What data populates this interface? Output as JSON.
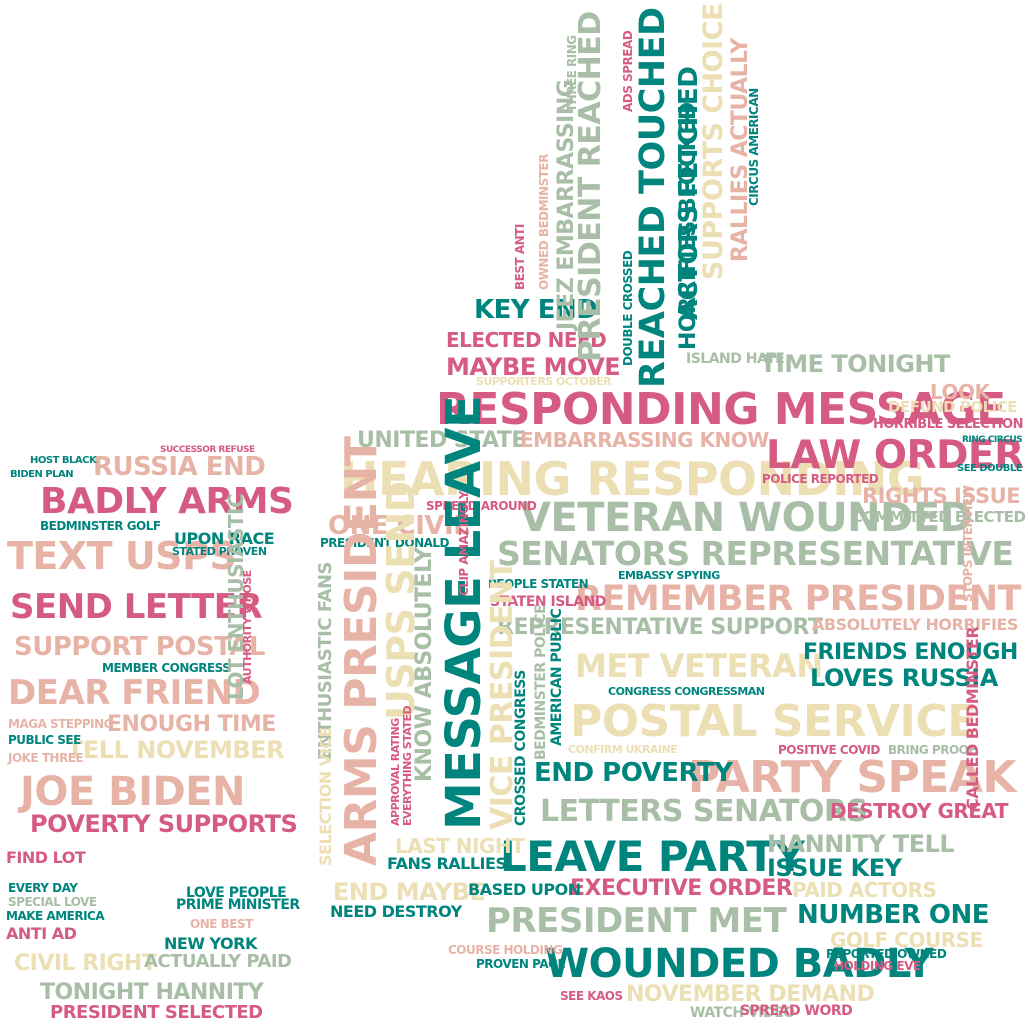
{
  "palette": {
    "pink": "#d65b82",
    "teal": "#00857e",
    "sage": "#a8bea6",
    "cream": "#ecdfb4",
    "salmon": "#e8b3a7"
  },
  "words": [
    {
      "text": "RESPONDING MESSAGE",
      "color": "pink"
    },
    {
      "text": "HEARING RESPONDING",
      "color": "cream"
    },
    {
      "text": "VETERAN WOUNDED",
      "color": "sage"
    },
    {
      "text": "SENATORS REPRESENTATIVE",
      "color": "sage"
    },
    {
      "text": "REMEMBER PRESIDENT",
      "color": "salmon"
    },
    {
      "text": "REPRESENTATIVE SUPPORT",
      "color": "sage"
    },
    {
      "text": "ABSOLUTELY HORRIFIES",
      "color": "salmon"
    },
    {
      "text": "MET VETERAN",
      "color": "cream"
    },
    {
      "text": "FRIENDS ENOUGH",
      "color": "teal"
    },
    {
      "text": "LOVES RUSSIA",
      "color": "teal"
    },
    {
      "text": "POSTAL SERVICE",
      "color": "cream"
    },
    {
      "text": "PARTY SPEAK",
      "color": "salmon"
    },
    {
      "text": "END POVERTY",
      "color": "teal"
    },
    {
      "text": "LETTERS SENATORS",
      "color": "sage"
    },
    {
      "text": "LEAVE PARTY",
      "color": "teal"
    },
    {
      "text": "EXECUTIVE ORDER",
      "color": "pink"
    },
    {
      "text": "PRESIDENT MET",
      "color": "sage"
    },
    {
      "text": "WOUNDED BADLY",
      "color": "teal"
    },
    {
      "text": "NUMBER ONE",
      "color": "teal"
    },
    {
      "text": "HANNITY TELL",
      "color": "sage"
    },
    {
      "text": "ISSUE KEY",
      "color": "teal"
    },
    {
      "text": "LAW ORDER",
      "color": "pink"
    },
    {
      "text": "RIGHTS ISSUE",
      "color": "salmon"
    },
    {
      "text": "COMMITTED ELECTED",
      "color": "sage"
    },
    {
      "text": "TIME TONIGHT",
      "color": "sage"
    },
    {
      "text": "UNITED STATE",
      "color": "sage"
    },
    {
      "text": "EMBARRASSING KNOW",
      "color": "salmon"
    },
    {
      "text": "MAYBE MOVE",
      "color": "pink"
    },
    {
      "text": "ELECTED NEED",
      "color": "pink"
    },
    {
      "text": "KEY END",
      "color": "teal"
    },
    {
      "text": "ONE CIVIL",
      "color": "salmon"
    },
    {
      "text": "END MAYBE",
      "color": "cream"
    },
    {
      "text": "NEED DESTROY",
      "color": "teal"
    },
    {
      "text": "FANS RALLIES",
      "color": "teal"
    },
    {
      "text": "LAST NIGHT",
      "color": "cream"
    },
    {
      "text": "BASED UPON",
      "color": "teal"
    },
    {
      "text": "NOVEMBER DEMAND",
      "color": "cream"
    },
    {
      "text": "DESTROY GREAT",
      "color": "pink"
    },
    {
      "text": "PAID ACTORS",
      "color": "cream"
    },
    {
      "text": "GOLF COURSE",
      "color": "cream"
    },
    {
      "text": "LOOK",
      "color": "salmon"
    },
    {
      "text": "HORRIBLE SELECTION",
      "color": "pink"
    },
    {
      "text": "DEFUND POLICE",
      "color": "cream"
    },
    {
      "text": "POLICE REPORTED",
      "color": "pink"
    },
    {
      "text": "PRESIDENT DONALD",
      "color": "teal"
    },
    {
      "text": "SPREAD AROUND",
      "color": "pink"
    },
    {
      "text": "STATEN ISLAND",
      "color": "pink"
    },
    {
      "text": "ISLAND HATE",
      "color": "sage"
    },
    {
      "text": "RUSSIA END",
      "color": "salmon"
    },
    {
      "text": "BADLY ARMS",
      "color": "pink"
    },
    {
      "text": "TEXT USPS",
      "color": "salmon"
    },
    {
      "text": "SEND LETTER",
      "color": "pink"
    },
    {
      "text": "SUPPORT POSTAL",
      "color": "salmon"
    },
    {
      "text": "DEAR FRIEND",
      "color": "salmon"
    },
    {
      "text": "ENOUGH TIME",
      "color": "salmon"
    },
    {
      "text": "TELL NOVEMBER",
      "color": "cream"
    },
    {
      "text": "JOE BIDEN",
      "color": "salmon"
    },
    {
      "text": "POVERTY SUPPORTS",
      "color": "pink"
    },
    {
      "text": "UPON RACE",
      "color": "teal"
    },
    {
      "text": "BEDMINSTER GOLF",
      "color": "teal"
    },
    {
      "text": "MEMBER CONGRESS",
      "color": "teal"
    },
    {
      "text": "CIVIL RIGHT",
      "color": "cream"
    },
    {
      "text": "TONIGHT HANNITY",
      "color": "sage"
    },
    {
      "text": "PRESIDENT SELECTED",
      "color": "pink"
    },
    {
      "text": "NEW YORK",
      "color": "teal"
    },
    {
      "text": "ACTUALLY PAID",
      "color": "sage"
    },
    {
      "text": "LOVE PEOPLE",
      "color": "teal"
    },
    {
      "text": "PRIME MINISTER",
      "color": "teal"
    },
    {
      "text": "EVERY DAY",
      "color": "teal"
    },
    {
      "text": "SPECIAL LOVE",
      "color": "sage"
    },
    {
      "text": "MAKE AMERICA",
      "color": "teal"
    },
    {
      "text": "ANTI AD",
      "color": "pink"
    },
    {
      "text": "FIND LOT",
      "color": "pink"
    },
    {
      "text": "PUBLIC SEE",
      "color": "teal"
    },
    {
      "text": "JOKE THREE",
      "color": "salmon"
    },
    {
      "text": "HOST BLACK",
      "color": "teal"
    },
    {
      "text": "MAGA STEPPING",
      "color": "salmon"
    },
    {
      "text": "CONFIRM UKRAINE",
      "color": "cream"
    },
    {
      "text": "SEE DOUBLE",
      "color": "teal"
    },
    {
      "text": "RING CIRCUS",
      "color": "teal"
    },
    {
      "text": "BIDEN PLAN",
      "color": "teal"
    },
    {
      "text": "ONE BEST",
      "color": "salmon"
    },
    {
      "text": "SEE KAOS",
      "color": "pink"
    },
    {
      "text": "WATCH VIDEO",
      "color": "sage"
    },
    {
      "text": "SPREAD WORD",
      "color": "pink"
    },
    {
      "text": "COURSE HOLDING",
      "color": "salmon"
    },
    {
      "text": "PROVEN PAGE",
      "color": "teal"
    },
    {
      "text": "HOLDING EVE",
      "color": "pink"
    },
    {
      "text": "REPORTED OWNED",
      "color": "teal"
    },
    {
      "text": "BRING PROOF",
      "color": "sage"
    },
    {
      "text": "POSITIVE COVID",
      "color": "pink"
    },
    {
      "text": "CONGRESS CONGRESSMAN",
      "color": "teal"
    },
    {
      "text": "PEOPLE STATEN",
      "color": "teal"
    },
    {
      "text": "EMBASSY SPYING",
      "color": "teal"
    },
    {
      "text": "SUPPORTERS OCTOBER",
      "color": "cream"
    },
    {
      "text": "STATED PROVEN",
      "color": "teal"
    },
    {
      "text": "SUCCESSOR REFUSE",
      "color": "pink"
    }
  ],
  "vertical_words": [
    {
      "text": "MESSAGE LEAVE",
      "color": "teal"
    },
    {
      "text": "ARMS PRESIDENT",
      "color": "salmon"
    },
    {
      "text": "USPS SEND",
      "color": "cream"
    },
    {
      "text": "KNOW ABSOLUTELY",
      "color": "sage"
    },
    {
      "text": "VICE PRESIDENT",
      "color": "cream"
    },
    {
      "text": "ENTHUSIASTIC FANS",
      "color": "sage"
    },
    {
      "text": "SELECTION VICE",
      "color": "cream"
    },
    {
      "text": "PRESIDENT REACHED",
      "color": "sage"
    },
    {
      "text": "REACHED TOUCHED",
      "color": "teal"
    },
    {
      "text": "ACTORS FETCHED",
      "color": "teal"
    },
    {
      "text": "SUPPORTS CHOICE",
      "color": "cream"
    },
    {
      "text": "RALLIES ACTUALLY",
      "color": "salmon"
    },
    {
      "text": "HORRIFIES BLOCKED",
      "color": "teal"
    },
    {
      "text": "JEEZ EMBARRASSING",
      "color": "sage"
    },
    {
      "text": "LOT ENTHUSIASTIC",
      "color": "sage"
    },
    {
      "text": "CALLED BEDMINSTER",
      "color": "pink"
    },
    {
      "text": "CROSSED CONGRESS",
      "color": "teal"
    },
    {
      "text": "BEDMINSTER POLICE",
      "color": "sage"
    },
    {
      "text": "AMERICAN PUBLIC",
      "color": "teal"
    },
    {
      "text": "CIRCUS AMERICAN",
      "color": "teal"
    },
    {
      "text": "DOUBLE CROSSED",
      "color": "teal"
    },
    {
      "text": "ADS SPREAD",
      "color": "pink"
    },
    {
      "text": "THREE RING",
      "color": "sage"
    },
    {
      "text": "STOPS INTERVIEW",
      "color": "salmon"
    },
    {
      "text": "AUTHORITY WHOSE",
      "color": "pink"
    },
    {
      "text": "OWNED BEDMINSTER",
      "color": "salmon"
    },
    {
      "text": "BEST ANTI",
      "color": "pink"
    },
    {
      "text": "CLIP AMAZINGLY",
      "color": "pink"
    },
    {
      "text": "APPROVAL RATING",
      "color": "pink"
    },
    {
      "text": "EVERYTHING STATED",
      "color": "pink"
    }
  ]
}
